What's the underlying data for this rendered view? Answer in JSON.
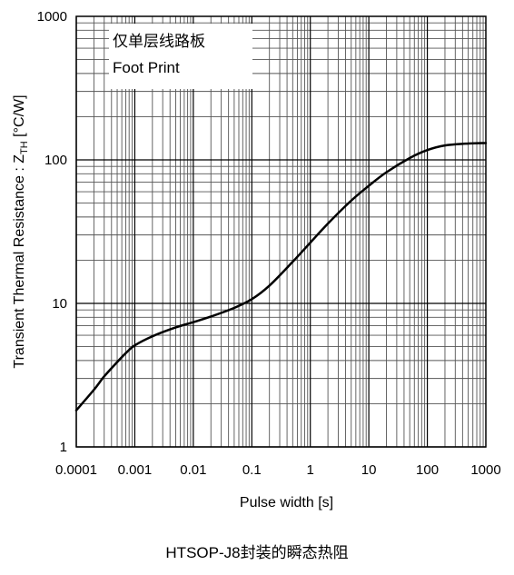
{
  "chart_data": {
    "type": "line",
    "xscale": "log",
    "yscale": "log",
    "xlim": [
      0.0001,
      1000
    ],
    "ylim": [
      1,
      1000
    ],
    "grid": true,
    "xlabel": "Pulse width [s]",
    "ylabel_main": "Transient Thermal Resistance : Z",
    "ylabel_sub": "TH",
    "ylabel_unit": " [°C/W]",
    "x_tick_labels": [
      "0.0001",
      "0.001",
      "0.01",
      "0.1",
      "1",
      "10",
      "100",
      "1000"
    ],
    "y_tick_labels": [
      "1",
      "10",
      "100",
      "1000"
    ],
    "annotation_lines": [
      "仅单层线路板",
      "Foot Print"
    ],
    "series": [
      {
        "color": "#000000",
        "x": [
          0.0001,
          0.0002,
          0.0003,
          0.0005,
          0.0007,
          0.001,
          0.002,
          0.005,
          0.01,
          0.02,
          0.05,
          0.1,
          0.2,
          0.5,
          1,
          2,
          5,
          10,
          20,
          50,
          100,
          200,
          500,
          1000
        ],
        "y": [
          1.8,
          2.5,
          3.1,
          3.9,
          4.5,
          5.1,
          5.9,
          6.8,
          7.4,
          8.1,
          9.3,
          10.7,
          13.3,
          19.5,
          26.5,
          36,
          52,
          66,
          82,
          103,
          117,
          126,
          130,
          131
        ]
      }
    ]
  },
  "caption": "HTSOP-J8封装的瞬态热阻"
}
